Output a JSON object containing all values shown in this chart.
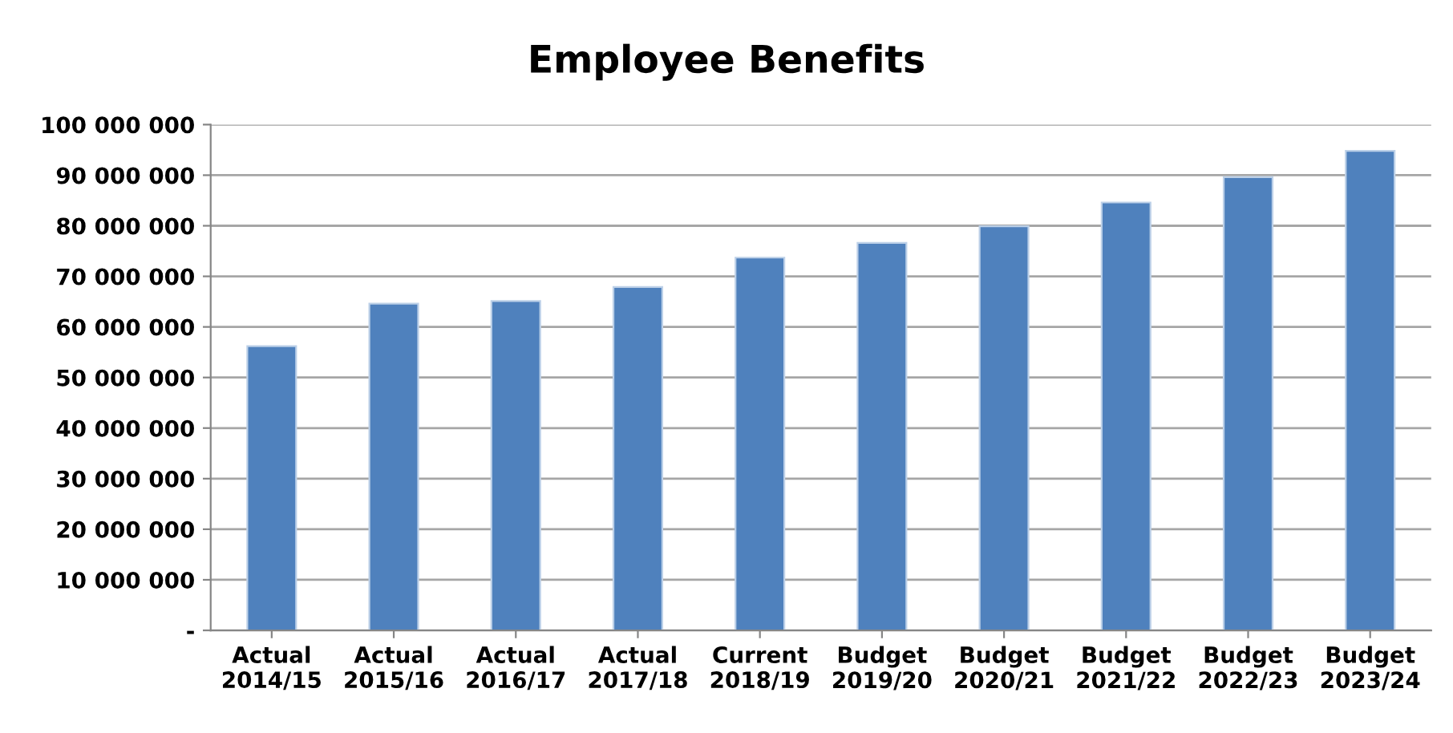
{
  "chart_data": {
    "type": "bar",
    "title": "Employee Benefits",
    "categories": [
      "Actual\n2014/15",
      "Actual\n2015/16",
      "Actual\n2016/17",
      "Actual\n2017/18",
      "Current\n2018/19",
      "Budget\n2019/20",
      "Budget\n2020/21",
      "Budget\n2021/22",
      "Budget\n2022/23",
      "Budget\n2023/24"
    ],
    "values": [
      56200000,
      64600000,
      65100000,
      67900000,
      73700000,
      76600000,
      79900000,
      84600000,
      89600000,
      94800000
    ],
    "color": "#4f81bd",
    "ylim": [
      0,
      100000000
    ],
    "yticks": [
      {
        "value": 0,
        "label": "-"
      },
      {
        "value": 10000000,
        "label": "10 000 000"
      },
      {
        "value": 20000000,
        "label": "20 000 000"
      },
      {
        "value": 30000000,
        "label": "30 000 000"
      },
      {
        "value": 40000000,
        "label": "40 000 000"
      },
      {
        "value": 50000000,
        "label": "50 000 000"
      },
      {
        "value": 60000000,
        "label": "60 000 000"
      },
      {
        "value": 70000000,
        "label": "70 000 000"
      },
      {
        "value": 80000000,
        "label": "80 000 000"
      },
      {
        "value": 90000000,
        "label": "90 000 000"
      },
      {
        "value": 100000000,
        "label": "100 000 000"
      }
    ],
    "grid": "y",
    "legend": false
  }
}
